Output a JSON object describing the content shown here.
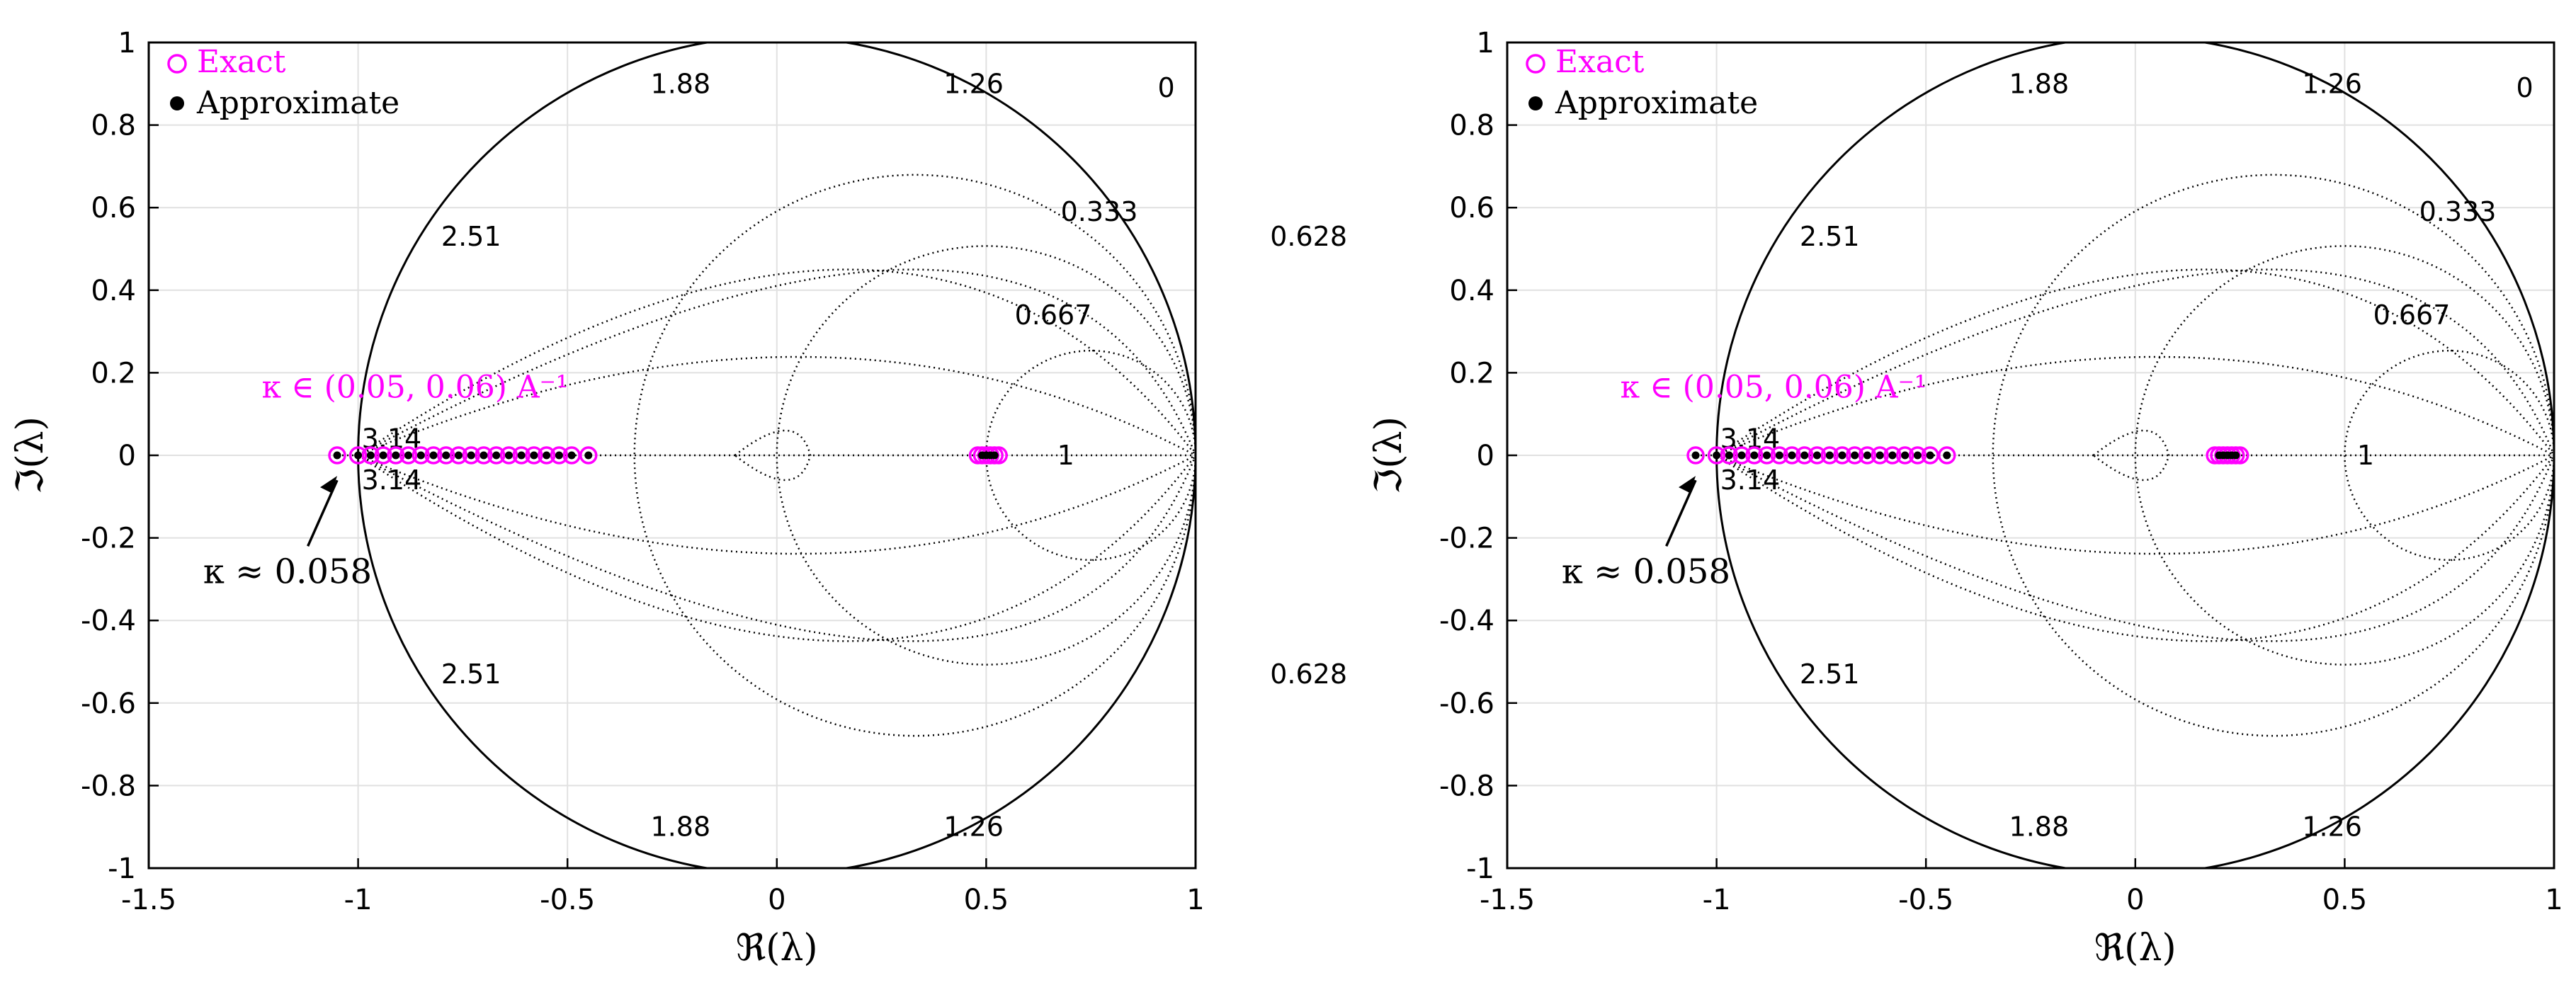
{
  "chart_data": [
    {
      "type": "scatter",
      "xlabel": "ℜ(λ)",
      "ylabel": "ℑ(λ)",
      "xlim": [
        -1.5,
        1
      ],
      "ylim": [
        -1,
        1
      ],
      "xticks": [
        -1.5,
        -1,
        -0.5,
        0,
        0.5,
        1
      ],
      "xtick_labels": [
        "-1.5",
        "-1",
        "-0.5",
        "0",
        "0.5",
        "1"
      ],
      "yticks": [
        -1,
        -0.8,
        -0.6,
        -0.4,
        -0.2,
        0,
        0.2,
        0.4,
        0.6,
        0.8,
        1
      ],
      "ytick_labels": [
        "-1",
        "-0.8",
        "-0.6",
        "-0.4",
        "-0.2",
        "0",
        "0.2",
        "0.4",
        "0.6",
        "0.8",
        "1"
      ],
      "grid": true,
      "legend": {
        "position": "top-left",
        "entries": [
          {
            "label": "Exact",
            "color": "#ff00ff",
            "marker": "open-circle"
          },
          {
            "label": "Approximate",
            "color": "#000000",
            "marker": "filled-circle"
          }
        ]
      },
      "series": [
        {
          "name": "Exact",
          "color": "#ff00ff",
          "marker": "open-circle",
          "x": [
            -1.05,
            -1.0,
            -0.97,
            -0.94,
            -0.91,
            -0.88,
            -0.85,
            -0.82,
            -0.79,
            -0.76,
            -0.73,
            -0.7,
            -0.67,
            -0.64,
            -0.61,
            -0.58,
            -0.55,
            -0.52,
            -0.49,
            -0.45,
            0.48,
            0.49,
            0.5,
            0.51,
            0.52,
            0.53
          ],
          "y": [
            0,
            0,
            0,
            0,
            0,
            0,
            0,
            0,
            0,
            0,
            0,
            0,
            0,
            0,
            0,
            0,
            0,
            0,
            0,
            0,
            0,
            0,
            0,
            0,
            0,
            0
          ]
        },
        {
          "name": "Approximate",
          "color": "#000000",
          "marker": "filled-circle",
          "x": [
            -1.05,
            -1.0,
            -0.97,
            -0.94,
            -0.91,
            -0.88,
            -0.85,
            -0.82,
            -0.79,
            -0.76,
            -0.73,
            -0.7,
            -0.67,
            -0.64,
            -0.61,
            -0.58,
            -0.55,
            -0.52,
            -0.49,
            -0.45,
            0.49,
            0.5,
            0.51,
            0.52
          ],
          "y": [
            0,
            0,
            0,
            0,
            0,
            0,
            0,
            0,
            0,
            0,
            0,
            0,
            0,
            0,
            0,
            0,
            0,
            0,
            0,
            0,
            0,
            0,
            0,
            0
          ]
        }
      ],
      "contour_labels": [
        {
          "text": "0",
          "x": 0.93,
          "y": 0.89
        },
        {
          "text": "1.26",
          "x": 0.47,
          "y": 0.9
        },
        {
          "text": "1.88",
          "x": -0.23,
          "y": 0.9
        },
        {
          "text": "0.333",
          "x": 0.77,
          "y": 0.59
        },
        {
          "text": "0.628",
          "x": 1.27,
          "y": 0.53
        },
        {
          "text": "2.51",
          "x": -0.73,
          "y": 0.53
        },
        {
          "text": "0.667",
          "x": 0.66,
          "y": 0.34
        },
        {
          "text": "3.14",
          "x": -0.92,
          "y": 0.04
        },
        {
          "text": "3.14",
          "x": -0.92,
          "y": -0.06
        },
        {
          "text": "1",
          "x": 0.69,
          "y": 0
        },
        {
          "text": "2.51",
          "x": -0.73,
          "y": -0.53
        },
        {
          "text": "0.628",
          "x": 1.27,
          "y": -0.53
        },
        {
          "text": "1.88",
          "x": -0.23,
          "y": -0.9
        },
        {
          "text": "1.26",
          "x": 0.47,
          "y": -0.9
        }
      ],
      "annotations": [
        {
          "text": "κ ∈ (0.05, 0.06) A⁻¹",
          "color": "#ff00ff"
        },
        {
          "text": "κ ≈ 0.058",
          "color": "#000000"
        }
      ]
    },
    {
      "type": "scatter",
      "xlabel": "ℜ(λ)",
      "ylabel": "ℑ(λ)",
      "xlim": [
        -1.5,
        1
      ],
      "ylim": [
        -1,
        1
      ],
      "xticks": [
        -1.5,
        -1,
        -0.5,
        0,
        0.5,
        1
      ],
      "xtick_labels": [
        "-1.5",
        "-1",
        "-0.5",
        "0",
        "0.5",
        "1"
      ],
      "yticks": [
        -1,
        -0.8,
        -0.6,
        -0.4,
        -0.2,
        0,
        0.2,
        0.4,
        0.6,
        0.8,
        1
      ],
      "ytick_labels": [
        "-1",
        "-0.8",
        "-0.6",
        "-0.4",
        "-0.2",
        "0",
        "0.2",
        "0.4",
        "0.6",
        "0.8",
        "1"
      ],
      "grid": true,
      "legend": {
        "position": "top-left",
        "entries": [
          {
            "label": "Exact",
            "color": "#ff00ff",
            "marker": "open-circle"
          },
          {
            "label": "Approximate",
            "color": "#000000",
            "marker": "filled-circle"
          }
        ]
      },
      "series": [
        {
          "name": "Exact",
          "color": "#ff00ff",
          "marker": "open-circle",
          "x": [
            -1.05,
            -1.0,
            -0.97,
            -0.94,
            -0.91,
            -0.88,
            -0.85,
            -0.82,
            -0.79,
            -0.76,
            -0.73,
            -0.7,
            -0.67,
            -0.64,
            -0.61,
            -0.58,
            -0.55,
            -0.52,
            -0.49,
            -0.45,
            0.19,
            0.2,
            0.21,
            0.22,
            0.23,
            0.24,
            0.25
          ],
          "y": [
            0,
            0,
            0,
            0,
            0,
            0,
            0,
            0,
            0,
            0,
            0,
            0,
            0,
            0,
            0,
            0,
            0,
            0,
            0,
            0,
            0,
            0,
            0,
            0,
            0,
            0,
            0
          ]
        },
        {
          "name": "Approximate",
          "color": "#000000",
          "marker": "filled-circle",
          "x": [
            -1.05,
            -1.0,
            -0.97,
            -0.94,
            -0.91,
            -0.88,
            -0.85,
            -0.82,
            -0.79,
            -0.76,
            -0.73,
            -0.7,
            -0.67,
            -0.64,
            -0.61,
            -0.58,
            -0.55,
            -0.52,
            -0.49,
            -0.45,
            0.2,
            0.21,
            0.22,
            0.23,
            0.24
          ],
          "y": [
            0,
            0,
            0,
            0,
            0,
            0,
            0,
            0,
            0,
            0,
            0,
            0,
            0,
            0,
            0,
            0,
            0,
            0,
            0,
            0,
            0,
            0,
            0,
            0,
            0
          ]
        }
      ],
      "contour_labels": [
        {
          "text": "0",
          "x": 0.93,
          "y": 0.89
        },
        {
          "text": "1.26",
          "x": 0.47,
          "y": 0.9
        },
        {
          "text": "1.88",
          "x": -0.23,
          "y": 0.9
        },
        {
          "text": "0.333",
          "x": 0.77,
          "y": 0.59
        },
        {
          "text": "0.628",
          "x": 1.27,
          "y": 0.53
        },
        {
          "text": "2.51",
          "x": -0.73,
          "y": 0.53
        },
        {
          "text": "0.667",
          "x": 0.66,
          "y": 0.34
        },
        {
          "text": "3.14",
          "x": -0.92,
          "y": 0.04
        },
        {
          "text": "3.14",
          "x": -0.92,
          "y": -0.06
        },
        {
          "text": "1",
          "x": 0.55,
          "y": 0
        },
        {
          "text": "2.51",
          "x": -0.73,
          "y": -0.53
        },
        {
          "text": "0.628",
          "x": 1.27,
          "y": -0.53
        },
        {
          "text": "1.88",
          "x": -0.23,
          "y": -0.9
        },
        {
          "text": "1.26",
          "x": 0.47,
          "y": -0.9
        }
      ],
      "annotations": [
        {
          "text": "κ ∈ (0.05, 0.06) A⁻¹",
          "color": "#ff00ff"
        },
        {
          "text": "κ ≈ 0.058",
          "color": "#000000"
        }
      ]
    }
  ]
}
